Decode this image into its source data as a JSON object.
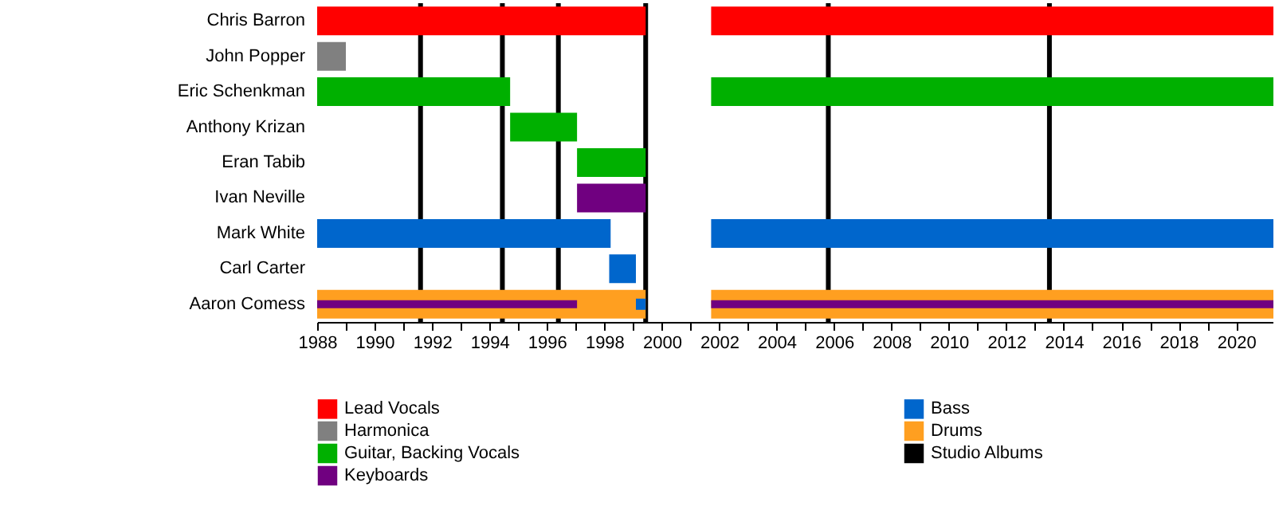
{
  "chart_data": {
    "type": "bar",
    "orientation": "horizontal",
    "legend": "bottom",
    "grid": false,
    "categories": [
      "Chris Barron",
      "John Popper",
      "Eric Schenkman",
      "Anthony Krizan",
      "Eran Tabib",
      "Ivan Neville",
      "Mark White",
      "Carl Carter",
      "Aaron Comess"
    ],
    "series": [
      {
        "name": "Lead Vocals",
        "color": "#ff0000",
        "base": [
          1988,
          null,
          null,
          null,
          null,
          null,
          null,
          null,
          null
        ],
        "values": [
          11.44,
          null,
          null,
          null,
          null,
          null,
          null,
          null,
          null
        ]
      },
      {
        "name": "Harmonica",
        "color": "#808080",
        "base": [
          null,
          1988,
          null,
          null,
          null,
          null,
          null,
          null,
          null
        ],
        "values": [
          null,
          1.0,
          null,
          null,
          null,
          null,
          null,
          null,
          null
        ]
      },
      {
        "name": "Guitar, Backing Vocals",
        "color": "#00b000",
        "base": [
          null,
          null,
          1988,
          1994.72,
          1997.05,
          null,
          null,
          null,
          null
        ],
        "values": [
          null,
          null,
          6.72,
          2.33,
          2.39,
          null,
          null,
          null,
          null
        ]
      },
      {
        "name": "Keyboards",
        "color": "#700080",
        "base": [
          null,
          null,
          null,
          null,
          null,
          1997.05,
          null,
          null,
          1988
        ],
        "values": [
          null,
          null,
          null,
          null,
          null,
          2.39,
          null,
          null,
          9.05
        ]
      },
      {
        "name": "Bass",
        "color": "#0066cc",
        "base": [
          null,
          null,
          null,
          null,
          null,
          null,
          1988,
          1998.17,
          1999.1
        ],
        "values": [
          null,
          null,
          null,
          null,
          null,
          null,
          10.22,
          0.93,
          0.34
        ]
      },
      {
        "name": "Drums",
        "color": "#ff9f20",
        "base": [
          null,
          null,
          null,
          null,
          null,
          null,
          null,
          null,
          1988
        ],
        "values": [
          null,
          null,
          null,
          null,
          null,
          null,
          null,
          null,
          11.44
        ]
      },
      {
        "color": "#ff0000",
        "base": [
          2001.72,
          null,
          null,
          null,
          null,
          null,
          null,
          null,
          null
        ],
        "values": [
          19.58,
          null,
          null,
          null,
          null,
          null,
          null,
          null,
          null
        ]
      },
      {
        "color": "#00b000",
        "base": [
          null,
          null,
          2001.72,
          null,
          null,
          null,
          null,
          null,
          null
        ],
        "values": [
          null,
          null,
          19.58,
          null,
          null,
          null,
          null,
          null,
          null
        ]
      },
      {
        "color": "#700080",
        "base": [
          null,
          null,
          null,
          null,
          null,
          null,
          null,
          null,
          2001.72
        ],
        "values": [
          null,
          null,
          null,
          null,
          null,
          null,
          null,
          null,
          19.58
        ]
      },
      {
        "color": "#0066cc",
        "base": [
          null,
          null,
          null,
          null,
          null,
          null,
          2001.72,
          null,
          null
        ],
        "values": [
          null,
          null,
          null,
          null,
          null,
          null,
          19.58,
          null,
          null
        ]
      },
      {
        "color": "#ff9f20",
        "base": [
          null,
          null,
          null,
          null,
          null,
          null,
          null,
          null,
          2001.72
        ],
        "values": [
          null,
          null,
          null,
          null,
          null,
          null,
          null,
          null,
          19.58
        ]
      }
    ],
    "ref_lines": [
      {
        "axis": "x",
        "value": 1991.6,
        "label": "Studio Albums",
        "color": "#000000"
      },
      {
        "axis": "x",
        "value": 1994.45,
        "color": "#000000"
      },
      {
        "axis": "x",
        "value": 1996.4,
        "color": "#000000"
      },
      {
        "axis": "x",
        "value": 1999.44,
        "color": "#000000"
      },
      {
        "axis": "x",
        "value": 2005.8,
        "color": "#000000"
      },
      {
        "axis": "x",
        "value": 2013.5,
        "color": "#000000"
      }
    ],
    "xlim": [
      1988,
      2021.3
    ],
    "xticks": [
      1988,
      {
        "value": 1989,
        "label": null
      },
      1990,
      {
        "value": 1991,
        "label": null
      },
      1992,
      {
        "value": 1993,
        "label": null
      },
      1994,
      {
        "value": 1995,
        "label": null
      },
      1996,
      {
        "value": 1997,
        "label": null
      },
      1998,
      {
        "value": 1999,
        "label": null
      },
      2000,
      {
        "value": 2001,
        "label": null
      },
      2002,
      {
        "value": 2003,
        "label": null
      },
      2004,
      {
        "value": 2005,
        "label": null
      },
      2006,
      {
        "value": 2007,
        "label": null
      },
      2008,
      {
        "value": 2009,
        "label": null
      },
      2010,
      {
        "value": 2011,
        "label": null
      },
      2012,
      {
        "value": 2013,
        "label": null
      },
      2014,
      {
        "value": 2015,
        "label": null
      },
      2016,
      {
        "value": 2017,
        "label": null
      },
      2018,
      {
        "value": 2019,
        "label": null
      },
      2020
    ]
  }
}
